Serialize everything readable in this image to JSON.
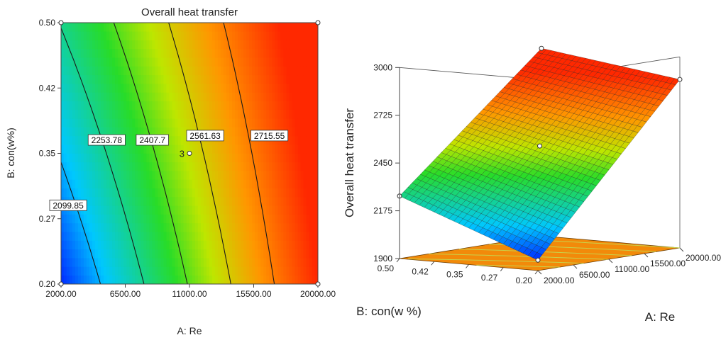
{
  "chart_data": [
    {
      "type": "contour",
      "title": "Overall heat transfer",
      "xlabel": "A: Re",
      "ylabel": "B: con(w%)",
      "xlim": [
        2000,
        20000
      ],
      "ylim": [
        0.2,
        0.5
      ],
      "x_ticks": [
        "2000.00",
        "6500.00",
        "11000.00",
        "15500.00",
        "20000.00"
      ],
      "y_ticks": [
        "0.20",
        "0.27",
        "0.35",
        "0.42",
        "0.50"
      ],
      "contour_levels": [
        {
          "value": 2099.85,
          "label": "2099.85",
          "label_at": [
            2500,
            0.29
          ]
        },
        {
          "value": 2253.78,
          "label": "2253.78",
          "label_at": [
            5200,
            0.365
          ]
        },
        {
          "value": 2407.7,
          "label": "2407.7",
          "label_at": [
            8400,
            0.365
          ]
        },
        {
          "value": 2561.63,
          "label": "2561.63",
          "label_at": [
            12100,
            0.37
          ]
        },
        {
          "value": 2715.55,
          "label": "2715.55",
          "label_at": [
            16600,
            0.37
          ]
        }
      ],
      "design_points": [
        {
          "x": 2000,
          "y": 0.2
        },
        {
          "x": 2000,
          "y": 0.5
        },
        {
          "x": 20000,
          "y": 0.2
        },
        {
          "x": 20000,
          "y": 0.5
        },
        {
          "x": 11000,
          "y": 0.35,
          "label": "3"
        }
      ],
      "z_range": [
        1960,
        2870
      ]
    },
    {
      "type": "surface3d",
      "zlabel": "Overall heat transfer",
      "xlabel": "A: Re",
      "ylabel": "B: con(w %)",
      "zlim": [
        1900,
        3000
      ],
      "z_ticks": [
        "1900",
        "2175",
        "2450",
        "2725",
        "3000"
      ],
      "x_ticks": [
        "2000.00",
        "6500.00",
        "11000.00",
        "15500.00",
        "20000.00"
      ],
      "y_ticks": [
        "0.20",
        "0.27",
        "0.35",
        "0.42",
        "0.50"
      ],
      "surface_corners": [
        {
          "x": 2000,
          "y": 0.2,
          "z": 1960
        },
        {
          "x": 2000,
          "y": 0.5,
          "z": 2260
        },
        {
          "x": 20000,
          "y": 0.2,
          "z": 2870
        },
        {
          "x": 20000,
          "y": 0.5,
          "z": 2980
        }
      ]
    }
  ]
}
